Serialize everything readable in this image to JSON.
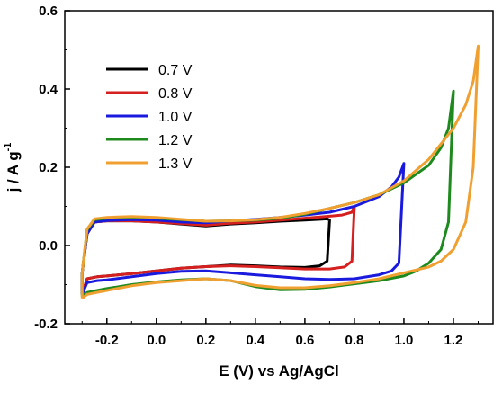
{
  "chart_data": {
    "type": "line",
    "title": "",
    "xlabel": "E (V) vs Ag/AgCl",
    "ylabel": "j / A g",
    "ylabel_superscript": "-1",
    "xlim": [
      -0.37,
      1.36
    ],
    "ylim": [
      -0.2,
      0.6
    ],
    "x_ticks": [
      "-0.2",
      "0.0",
      "0.2",
      "0.4",
      "0.6",
      "0.8",
      "1.0",
      "1.2"
    ],
    "x_tick_values": [
      -0.2,
      0.0,
      0.2,
      0.4,
      0.6,
      0.8,
      1.0,
      1.2
    ],
    "y_ticks": [
      "-0.2",
      "0.0",
      "0.2",
      "0.4",
      "0.6"
    ],
    "y_tick_values": [
      -0.2,
      0.0,
      0.2,
      0.4,
      0.6
    ],
    "grid": false,
    "legend_position": "top-left",
    "series": [
      {
        "name": "0.7 V",
        "color": "#000000",
        "x": [
          -0.3,
          -0.28,
          -0.24,
          -0.2,
          -0.1,
          0.0,
          0.1,
          0.2,
          0.3,
          0.4,
          0.5,
          0.6,
          0.66,
          0.69,
          0.7,
          0.69,
          0.66,
          0.6,
          0.5,
          0.4,
          0.3,
          0.2,
          0.1,
          0.0,
          -0.1,
          -0.2,
          -0.25,
          -0.28,
          -0.3,
          -0.3
        ],
        "y": [
          -0.125,
          -0.085,
          -0.08,
          -0.078,
          -0.072,
          -0.065,
          -0.058,
          -0.054,
          -0.05,
          -0.052,
          -0.055,
          -0.056,
          -0.052,
          -0.04,
          0.065,
          0.068,
          0.067,
          0.065,
          0.062,
          0.058,
          0.055,
          0.05,
          0.055,
          0.06,
          0.063,
          0.063,
          0.06,
          0.03,
          -0.07,
          -0.125
        ]
      },
      {
        "name": "0.8 V",
        "color": "#d62020",
        "x": [
          -0.3,
          -0.28,
          -0.24,
          -0.2,
          -0.1,
          0.0,
          0.1,
          0.2,
          0.3,
          0.4,
          0.5,
          0.6,
          0.7,
          0.76,
          0.79,
          0.8,
          0.79,
          0.75,
          0.7,
          0.6,
          0.5,
          0.4,
          0.3,
          0.2,
          0.1,
          0.0,
          -0.1,
          -0.2,
          -0.25,
          -0.28,
          -0.3,
          -0.3
        ],
        "y": [
          -0.125,
          -0.085,
          -0.08,
          -0.078,
          -0.072,
          -0.065,
          -0.058,
          -0.054,
          -0.052,
          -0.054,
          -0.057,
          -0.06,
          -0.06,
          -0.055,
          -0.04,
          0.1,
          0.085,
          0.078,
          0.075,
          0.07,
          0.065,
          0.06,
          0.057,
          0.052,
          0.056,
          0.06,
          0.063,
          0.063,
          0.06,
          0.03,
          -0.07,
          -0.125
        ]
      },
      {
        "name": "1.0 V",
        "color": "#1a1adf",
        "x": [
          -0.3,
          -0.28,
          -0.24,
          -0.2,
          -0.1,
          0.0,
          0.1,
          0.2,
          0.3,
          0.4,
          0.5,
          0.6,
          0.7,
          0.8,
          0.9,
          0.95,
          0.98,
          1.0,
          0.98,
          0.95,
          0.9,
          0.8,
          0.7,
          0.6,
          0.5,
          0.4,
          0.3,
          0.2,
          0.1,
          0.0,
          -0.1,
          -0.2,
          -0.25,
          -0.28,
          -0.3,
          -0.3
        ],
        "y": [
          -0.125,
          -0.095,
          -0.09,
          -0.088,
          -0.08,
          -0.072,
          -0.066,
          -0.065,
          -0.07,
          -0.075,
          -0.08,
          -0.085,
          -0.087,
          -0.085,
          -0.075,
          -0.065,
          -0.045,
          0.21,
          0.175,
          0.15,
          0.125,
          0.1,
          0.085,
          0.078,
          0.072,
          0.067,
          0.063,
          0.058,
          0.06,
          0.065,
          0.066,
          0.064,
          0.06,
          0.03,
          -0.07,
          -0.125
        ]
      },
      {
        "name": "1.2 V",
        "color": "#1e8a1e",
        "x": [
          -0.3,
          -0.28,
          -0.24,
          -0.2,
          -0.1,
          0.0,
          0.1,
          0.2,
          0.3,
          0.4,
          0.5,
          0.6,
          0.7,
          0.8,
          0.9,
          1.0,
          1.05,
          1.1,
          1.15,
          1.18,
          1.2,
          1.18,
          1.15,
          1.1,
          1.0,
          0.9,
          0.8,
          0.7,
          0.6,
          0.5,
          0.4,
          0.3,
          0.2,
          0.1,
          0.0,
          -0.1,
          -0.2,
          -0.25,
          -0.28,
          -0.3,
          -0.3
        ],
        "y": [
          -0.13,
          -0.12,
          -0.115,
          -0.11,
          -0.1,
          -0.093,
          -0.088,
          -0.085,
          -0.09,
          -0.105,
          -0.113,
          -0.112,
          -0.106,
          -0.098,
          -0.09,
          -0.078,
          -0.065,
          -0.045,
          -0.01,
          0.06,
          0.395,
          0.3,
          0.25,
          0.205,
          0.16,
          0.13,
          0.11,
          0.095,
          0.08,
          0.07,
          0.065,
          0.063,
          0.062,
          0.066,
          0.07,
          0.072,
          0.07,
          0.066,
          0.04,
          -0.07,
          -0.13
        ]
      },
      {
        "name": "1.3 V",
        "color": "#f0a030",
        "x": [
          -0.3,
          -0.28,
          -0.24,
          -0.2,
          -0.1,
          0.0,
          0.1,
          0.2,
          0.3,
          0.4,
          0.5,
          0.6,
          0.7,
          0.8,
          0.9,
          1.0,
          1.1,
          1.15,
          1.2,
          1.25,
          1.28,
          1.3,
          1.28,
          1.25,
          1.2,
          1.1,
          1.0,
          0.9,
          0.8,
          0.7,
          0.6,
          0.5,
          0.4,
          0.3,
          0.2,
          0.1,
          0.0,
          -0.1,
          -0.2,
          -0.25,
          -0.28,
          -0.3,
          -0.3
        ],
        "y": [
          -0.135,
          -0.125,
          -0.12,
          -0.115,
          -0.103,
          -0.095,
          -0.09,
          -0.085,
          -0.09,
          -0.102,
          -0.108,
          -0.108,
          -0.103,
          -0.095,
          -0.085,
          -0.07,
          -0.055,
          -0.04,
          -0.01,
          0.06,
          0.2,
          0.51,
          0.42,
          0.36,
          0.3,
          0.22,
          0.165,
          0.13,
          0.11,
          0.095,
          0.082,
          0.072,
          0.066,
          0.063,
          0.062,
          0.067,
          0.072,
          0.074,
          0.072,
          0.068,
          0.042,
          -0.07,
          -0.135
        ]
      }
    ]
  }
}
